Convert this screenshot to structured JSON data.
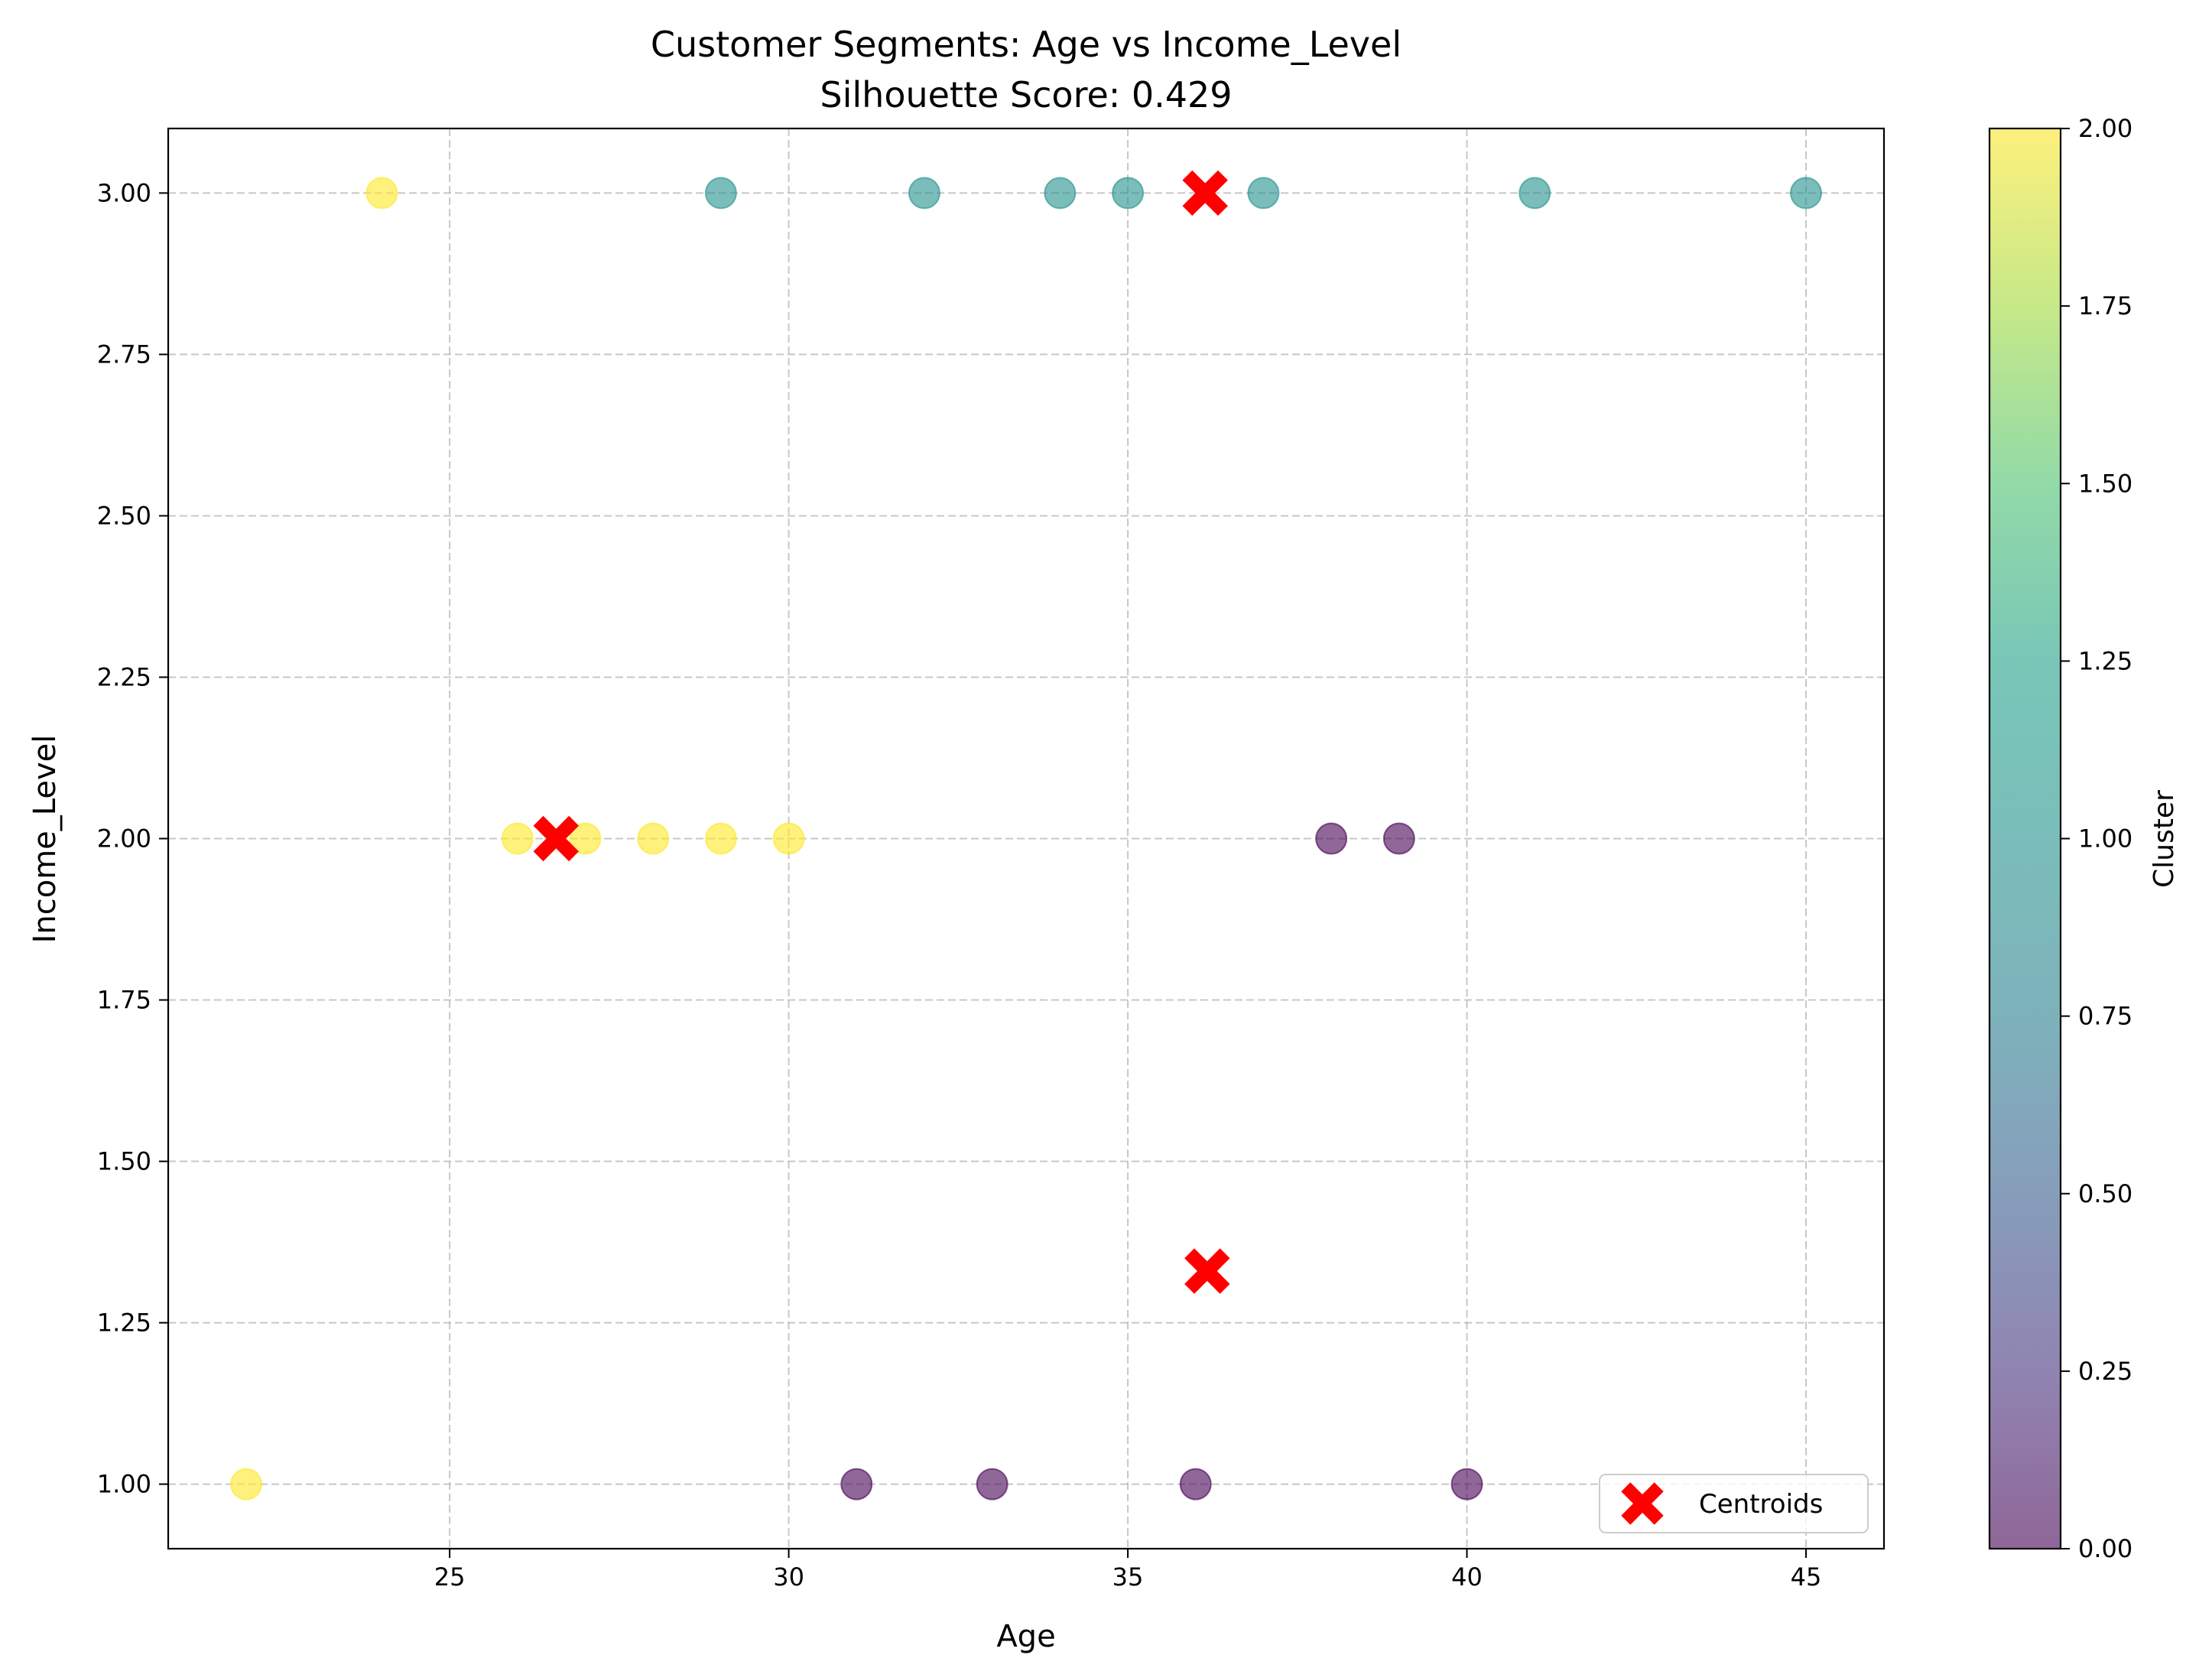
{
  "chart_data": {
    "type": "scatter",
    "title": "Customer Segments: Age vs Income_Level",
    "subtitle": "Silhouette Score: 0.429",
    "xlabel": "Age",
    "ylabel": "Income_Level",
    "xlim": [
      20.85,
      46.15
    ],
    "ylim": [
      0.9,
      3.1
    ],
    "xticks": [
      25,
      30,
      35,
      40,
      45
    ],
    "xtick_labels": [
      "25",
      "30",
      "35",
      "40",
      "45"
    ],
    "yticks": [
      1.0,
      1.25,
      1.5,
      1.75,
      2.0,
      2.25,
      2.5,
      2.75,
      3.0
    ],
    "ytick_labels": [
      "1.00",
      "1.25",
      "1.50",
      "1.75",
      "2.00",
      "2.25",
      "2.50",
      "2.75",
      "3.00"
    ],
    "grid": true,
    "grid_style": "dashed",
    "cluster_colors": {
      "0": "#440154",
      "1": "#21918c",
      "2": "#fde725"
    },
    "point_alpha": 0.6,
    "points": [
      {
        "x": 22,
        "y": 1,
        "cluster": 2
      },
      {
        "x": 24,
        "y": 3,
        "cluster": 2
      },
      {
        "x": 26,
        "y": 2,
        "cluster": 2
      },
      {
        "x": 27,
        "y": 2,
        "cluster": 2
      },
      {
        "x": 28,
        "y": 2,
        "cluster": 2
      },
      {
        "x": 29,
        "y": 2,
        "cluster": 2
      },
      {
        "x": 30,
        "y": 2,
        "cluster": 2
      },
      {
        "x": 29,
        "y": 3,
        "cluster": 1
      },
      {
        "x": 32,
        "y": 3,
        "cluster": 1
      },
      {
        "x": 34,
        "y": 3,
        "cluster": 1
      },
      {
        "x": 35,
        "y": 3,
        "cluster": 1
      },
      {
        "x": 37,
        "y": 3,
        "cluster": 1
      },
      {
        "x": 41,
        "y": 3,
        "cluster": 1
      },
      {
        "x": 45,
        "y": 3,
        "cluster": 1
      },
      {
        "x": 31,
        "y": 1,
        "cluster": 0
      },
      {
        "x": 33,
        "y": 1,
        "cluster": 0
      },
      {
        "x": 36,
        "y": 1,
        "cluster": 0
      },
      {
        "x": 38,
        "y": 2,
        "cluster": 0
      },
      {
        "x": 39,
        "y": 2,
        "cluster": 0
      },
      {
        "x": 40,
        "y": 1,
        "cluster": 0
      }
    ],
    "centroids": {
      "name": "Centroids",
      "color": "#ff0000",
      "marker": "X",
      "points": [
        {
          "x": 26.57,
          "y": 2.0
        },
        {
          "x": 36.14,
          "y": 3.0
        },
        {
          "x": 36.17,
          "y": 1.33
        }
      ]
    },
    "legend": {
      "position": "lower-right",
      "entries": [
        "Centroids"
      ]
    },
    "colorbar": {
      "label": "Cluster",
      "colormap": "viridis",
      "alpha": 0.6,
      "range": [
        0.0,
        2.0
      ],
      "ticks": [
        0.0,
        0.25,
        0.5,
        0.75,
        1.0,
        1.25,
        1.5,
        1.75,
        2.0
      ],
      "tick_labels": [
        "0.00",
        "0.25",
        "0.50",
        "0.75",
        "1.00",
        "1.25",
        "1.50",
        "1.75",
        "2.00"
      ]
    }
  }
}
